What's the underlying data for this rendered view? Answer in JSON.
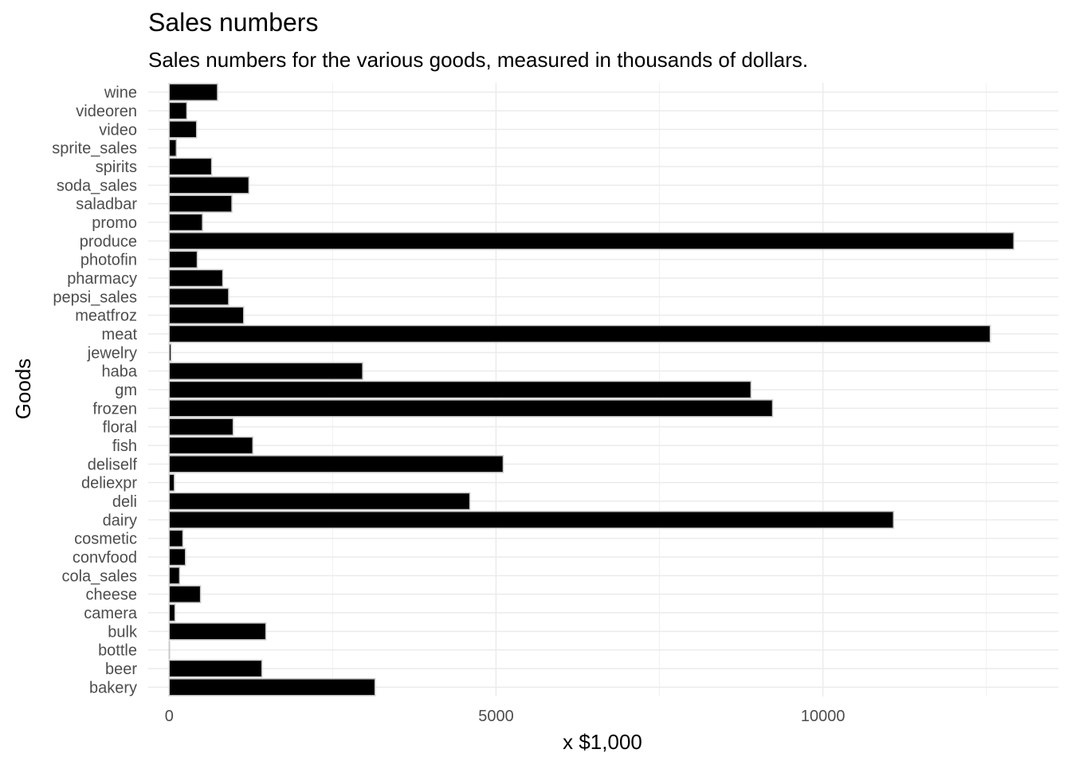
{
  "chart_data": {
    "type": "bar",
    "orientation": "horizontal",
    "title": "Sales numbers",
    "subtitle": "Sales numbers for the various goods, measured in thousands of dollars.",
    "xlabel": "x $1,000",
    "ylabel": "Goods",
    "xlim": [
      -320,
      13600
    ],
    "xticks": [
      0,
      5000,
      10000
    ],
    "xtick_labels": [
      "0",
      "5000",
      "10000"
    ],
    "grid": true,
    "bar_color": "#000000",
    "bar_outline": "#c8c8c8",
    "categories": [
      "bakery",
      "beer",
      "bottle",
      "bulk",
      "camera",
      "cheese",
      "cola_sales",
      "convfood",
      "cosmetic",
      "dairy",
      "deli",
      "deliexpr",
      "deliself",
      "fish",
      "floral",
      "frozen",
      "gm",
      "haba",
      "jewelry",
      "meat",
      "meatfroz",
      "pepsi_sales",
      "pharmacy",
      "photofin",
      "produce",
      "promo",
      "saladbar",
      "soda_sales",
      "spirits",
      "sprite_sales",
      "video",
      "videoren",
      "wine"
    ],
    "values": [
      3150,
      1420,
      0,
      1480,
      90,
      480,
      160,
      250,
      210,
      11080,
      4600,
      80,
      5110,
      1280,
      980,
      9230,
      8900,
      2960,
      30,
      12560,
      1140,
      910,
      820,
      430,
      12920,
      510,
      960,
      1220,
      650,
      110,
      420,
      270,
      740
    ]
  }
}
